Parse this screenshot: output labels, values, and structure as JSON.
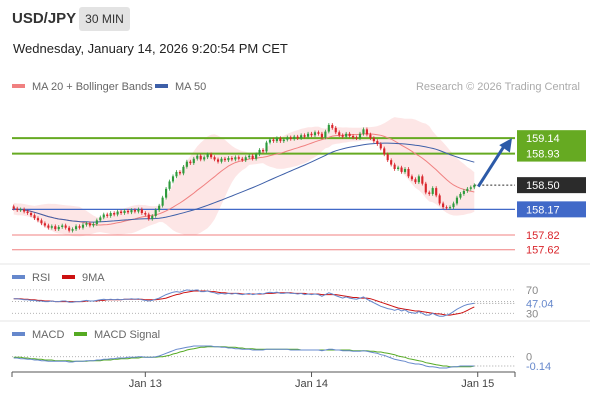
{
  "header": {
    "symbol": "USD/JPY",
    "interval": "30 MIN",
    "datetime": "Wednesday, January 14, 2026 9:20:54 PM CET"
  },
  "colors": {
    "bull": "#2e9a3c",
    "bear": "#d9242b",
    "ma20": "#f08080",
    "bollinger_fill": "#fde2e2",
    "ma50": "#3d5fa8",
    "resistance": "#66aa22",
    "support_blue": "#4169c8",
    "support_red": "#f08080",
    "current": "#2b2b2b",
    "arrow": "#2c5aa8",
    "rsi": "#6688cc",
    "rsi_ma": "#cc1111",
    "macd": "#6688cc",
    "macd_signal": "#55aa22"
  },
  "chart_data": [
    {
      "type": "candlestick",
      "legend": [
        {
          "label": "MA 20 + Bollinger Bands",
          "color": "#f08080"
        },
        {
          "label": "MA 50",
          "color": "#3d5fa8"
        }
      ],
      "legend_placement": "top-left",
      "watermark": "Research © 2026 Trading Central",
      "ylim": [
        157.48,
        159.66
      ],
      "x_ticks": [
        {
          "label": "Jan 13",
          "index": 38
        },
        {
          "label": "Jan 14",
          "index": 86
        },
        {
          "label": "Jan 15",
          "index": 134
        }
      ],
      "levels": [
        {
          "label": "159.14",
          "value": 159.14,
          "kind": "resistance"
        },
        {
          "label": "158.93",
          "value": 158.93,
          "kind": "resistance"
        },
        {
          "label": "158.50",
          "value": 158.5,
          "kind": "current"
        },
        {
          "label": "158.17",
          "value": 158.17,
          "kind": "support_blue"
        },
        {
          "label": "157.82",
          "value": 157.82,
          "kind": "support_red"
        },
        {
          "label": "157.62",
          "value": 157.62,
          "kind": "support_red"
        }
      ],
      "forecast_arrow": {
        "from": 158.48,
        "to": 159.14
      },
      "closes": [
        158.18,
        158.16,
        158.17,
        158.14,
        158.12,
        158.09,
        158.05,
        158.02,
        157.98,
        157.95,
        157.92,
        157.94,
        157.9,
        157.93,
        157.95,
        157.92,
        157.88,
        157.9,
        157.94,
        157.92,
        157.96,
        157.98,
        157.95,
        157.97,
        158.02,
        158.06,
        158.1,
        158.08,
        158.12,
        158.1,
        158.14,
        158.12,
        158.15,
        158.13,
        158.16,
        158.14,
        158.17,
        158.12,
        158.1,
        158.04,
        158.08,
        158.16,
        158.22,
        158.33,
        158.45,
        158.55,
        158.62,
        158.68,
        158.66,
        158.75,
        158.82,
        158.8,
        158.86,
        158.9,
        158.85,
        158.88,
        158.92,
        158.88,
        158.85,
        158.82,
        158.86,
        158.84,
        158.87,
        158.85,
        158.88,
        158.86,
        158.84,
        158.88,
        158.9,
        158.86,
        158.92,
        158.98,
        158.96,
        159.08,
        159.12,
        159.1,
        159.14,
        159.1,
        159.12,
        159.15,
        159.13,
        159.16,
        159.14,
        159.18,
        159.16,
        159.2,
        159.18,
        159.22,
        159.2,
        159.15,
        159.23,
        159.32,
        159.28,
        159.22,
        159.18,
        159.16,
        159.2,
        159.17,
        159.15,
        159.14,
        159.2,
        159.26,
        159.19,
        159.14,
        159.1,
        159.06,
        159.0,
        158.92,
        158.84,
        158.78,
        158.72,
        158.74,
        158.68,
        158.72,
        158.62,
        158.58,
        158.54,
        158.62,
        158.52,
        158.4,
        158.38,
        158.46,
        158.36,
        158.25,
        158.2,
        158.19,
        158.2,
        158.25,
        158.33,
        158.38,
        158.42,
        158.45,
        158.47,
        158.5
      ]
    },
    {
      "type": "line",
      "title": "RSI",
      "legend": [
        {
          "label": "RSI",
          "color": "#6688cc"
        },
        {
          "label": "9MA",
          "color": "#cc1111"
        }
      ],
      "ylim": [
        22,
        80
      ],
      "ref_levels": [
        70,
        50,
        30
      ],
      "y_ticks": [
        "70",
        "50",
        "30"
      ],
      "last_value_label": "47.04",
      "rsi": [
        55,
        55,
        54,
        53,
        53,
        52,
        52,
        51,
        51,
        50,
        50,
        51,
        50,
        50,
        51,
        51,
        49,
        49,
        50,
        50,
        51,
        52,
        51,
        51,
        52,
        53,
        54,
        53,
        54,
        53,
        54,
        53,
        54,
        54,
        55,
        54,
        55,
        53,
        52,
        51,
        52,
        54,
        56,
        59,
        62,
        64,
        66,
        67,
        66,
        68,
        70,
        69,
        69,
        70,
        67,
        67,
        68,
        66,
        65,
        63,
        64,
        63,
        64,
        63,
        64,
        63,
        62,
        63,
        64,
        62,
        63,
        64,
        63,
        65,
        66,
        65,
        66,
        64,
        64,
        65,
        64,
        64,
        63,
        64,
        62,
        63,
        62,
        63,
        62,
        59,
        62,
        65,
        63,
        60,
        58,
        56,
        58,
        56,
        55,
        54,
        56,
        58,
        54,
        51,
        48,
        45,
        42,
        40,
        38,
        37,
        35,
        37,
        34,
        36,
        32,
        31,
        30,
        33,
        30,
        27,
        27,
        30,
        27,
        25,
        25,
        27,
        29,
        33,
        37,
        40,
        43,
        45,
        46,
        47.04
      ],
      "rsi_ma": [
        55,
        55,
        55,
        54,
        54,
        53,
        53,
        52,
        52,
        51,
        51,
        51,
        50,
        50,
        50,
        50,
        50,
        50,
        50,
        50,
        50,
        51,
        51,
        51,
        51,
        52,
        52,
        53,
        53,
        53,
        53,
        53,
        54,
        54,
        54,
        54,
        54,
        54,
        53,
        53,
        53,
        53,
        54,
        55,
        56,
        58,
        60,
        62,
        63,
        65,
        66,
        67,
        68,
        68,
        68,
        68,
        68,
        67,
        67,
        66,
        65,
        65,
        64,
        64,
        64,
        64,
        63,
        63,
        63,
        63,
        63,
        63,
        63,
        64,
        64,
        64,
        65,
        65,
        65,
        65,
        65,
        64,
        64,
        64,
        64,
        63,
        63,
        63,
        63,
        62,
        62,
        62,
        62,
        62,
        61,
        60,
        59,
        58,
        57,
        57,
        56,
        56,
        56,
        55,
        53,
        51,
        49,
        47,
        45,
        43,
        41,
        39,
        38,
        37,
        36,
        35,
        34,
        34,
        33,
        32,
        31,
        30,
        29,
        29,
        28,
        27,
        27,
        28,
        29,
        30,
        32,
        35,
        38,
        41
      ]
    },
    {
      "type": "line",
      "title": "MACD",
      "legend": [
        {
          "label": "MACD",
          "color": "#6688cc"
        },
        {
          "label": "MACD Signal",
          "color": "#55aa22"
        }
      ],
      "ylim": [
        -0.2,
        0.25
      ],
      "y_ticks": [
        "0"
      ],
      "last_value_label": "-0.14",
      "macd": [
        -0.02,
        -0.02,
        -0.03,
        -0.03,
        -0.04,
        -0.04,
        -0.05,
        -0.05,
        -0.06,
        -0.06,
        -0.07,
        -0.07,
        -0.07,
        -0.07,
        -0.07,
        -0.07,
        -0.08,
        -0.08,
        -0.07,
        -0.07,
        -0.07,
        -0.06,
        -0.06,
        -0.06,
        -0.05,
        -0.05,
        -0.04,
        -0.04,
        -0.03,
        -0.03,
        -0.02,
        -0.02,
        -0.02,
        -0.01,
        -0.01,
        -0.01,
        0.0,
        0.0,
        -0.01,
        -0.01,
        -0.01,
        0.0,
        0.01,
        0.03,
        0.05,
        0.07,
        0.09,
        0.11,
        0.12,
        0.13,
        0.14,
        0.15,
        0.16,
        0.16,
        0.16,
        0.16,
        0.16,
        0.16,
        0.15,
        0.15,
        0.14,
        0.14,
        0.13,
        0.13,
        0.12,
        0.12,
        0.11,
        0.11,
        0.11,
        0.1,
        0.1,
        0.1,
        0.1,
        0.11,
        0.11,
        0.11,
        0.11,
        0.11,
        0.11,
        0.11,
        0.1,
        0.1,
        0.1,
        0.1,
        0.1,
        0.1,
        0.1,
        0.1,
        0.1,
        0.09,
        0.1,
        0.11,
        0.11,
        0.1,
        0.1,
        0.09,
        0.09,
        0.09,
        0.08,
        0.08,
        0.08,
        0.09,
        0.08,
        0.07,
        0.06,
        0.05,
        0.03,
        0.02,
        0.0,
        -0.02,
        -0.04,
        -0.05,
        -0.06,
        -0.07,
        -0.09,
        -0.1,
        -0.11,
        -0.11,
        -0.12,
        -0.14,
        -0.15,
        -0.15,
        -0.16,
        -0.17,
        -0.17,
        -0.17,
        -0.16,
        -0.15,
        -0.15,
        -0.14,
        -0.14,
        -0.14,
        -0.14,
        -0.14
      ],
      "macd_signal": [
        -0.01,
        -0.01,
        -0.01,
        -0.02,
        -0.02,
        -0.03,
        -0.03,
        -0.04,
        -0.04,
        -0.05,
        -0.05,
        -0.05,
        -0.06,
        -0.06,
        -0.06,
        -0.06,
        -0.06,
        -0.07,
        -0.07,
        -0.07,
        -0.07,
        -0.07,
        -0.06,
        -0.06,
        -0.06,
        -0.06,
        -0.05,
        -0.05,
        -0.05,
        -0.04,
        -0.04,
        -0.03,
        -0.03,
        -0.03,
        -0.02,
        -0.02,
        -0.02,
        -0.01,
        -0.01,
        -0.01,
        -0.01,
        -0.01,
        0.0,
        0.0,
        0.01,
        0.02,
        0.04,
        0.05,
        0.07,
        0.08,
        0.1,
        0.11,
        0.12,
        0.13,
        0.14,
        0.14,
        0.15,
        0.15,
        0.15,
        0.15,
        0.15,
        0.15,
        0.14,
        0.14,
        0.14,
        0.13,
        0.13,
        0.12,
        0.12,
        0.12,
        0.11,
        0.11,
        0.11,
        0.11,
        0.11,
        0.11,
        0.11,
        0.11,
        0.11,
        0.11,
        0.11,
        0.11,
        0.11,
        0.1,
        0.1,
        0.1,
        0.1,
        0.1,
        0.1,
        0.1,
        0.1,
        0.1,
        0.1,
        0.1,
        0.1,
        0.1,
        0.1,
        0.1,
        0.09,
        0.09,
        0.09,
        0.09,
        0.09,
        0.08,
        0.08,
        0.07,
        0.07,
        0.06,
        0.05,
        0.04,
        0.03,
        0.01,
        0.0,
        -0.01,
        -0.03,
        -0.04,
        -0.05,
        -0.06,
        -0.07,
        -0.09,
        -0.1,
        -0.11,
        -0.12,
        -0.13,
        -0.14,
        -0.14,
        -0.15,
        -0.15,
        -0.15,
        -0.15,
        -0.15,
        -0.15,
        -0.15,
        -0.14
      ]
    }
  ]
}
